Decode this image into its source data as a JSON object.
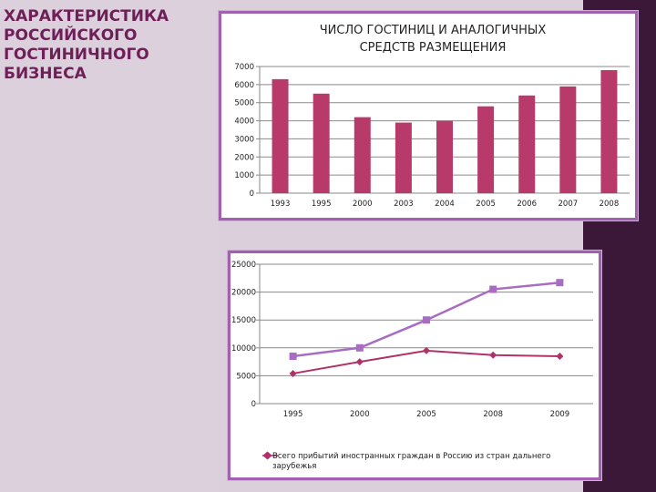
{
  "slide": {
    "title_lines": [
      "ХАРАКТЕРИСТИКА",
      "РОССИЙСКОГО",
      "ГОСТИНИЧНОГО",
      "БИЗНЕСА"
    ]
  },
  "colors": {
    "bar": "#b83a6b",
    "series_dark": "#b03268",
    "series_light": "#a86cc1",
    "title": "#6e1f57",
    "panel_border": "#a35fb0",
    "right_strip": "#3b1838"
  },
  "chart_data": [
    {
      "type": "bar",
      "title_lines": [
        "ЧИСЛО ГОСТИНИЦ И АНАЛОГИЧНЫХ",
        "СРЕДСТВ РАЗМЕЩЕНИЯ"
      ],
      "categories": [
        "1993",
        "1995",
        "2000",
        "2003",
        "2004",
        "2005",
        "2006",
        "2007",
        "2008"
      ],
      "values": [
        6300,
        5500,
        4200,
        3900,
        4000,
        4800,
        5400,
        5900,
        6800
      ],
      "ylim": [
        0,
        7000
      ],
      "yticks": [
        "0",
        "1000",
        "2000",
        "3000",
        "4000",
        "5000",
        "6000",
        "7000"
      ],
      "grid": true,
      "legend": "none"
    },
    {
      "type": "line",
      "categories": [
        "1995",
        "2000",
        "2005",
        "2008",
        "2009"
      ],
      "series": [
        {
          "name": "Всего прибытий иностранных граждан в Россию из стран дальнего зарубежья",
          "values": [
            5400,
            7500,
            9500,
            8700,
            8500
          ],
          "marker": "diamond"
        },
        {
          "values": [
            8500,
            10000,
            15000,
            20500,
            21700
          ],
          "marker": "square"
        }
      ],
      "ylim": [
        0,
        25000
      ],
      "yticks": [
        "0",
        "5000",
        "10000",
        "15000",
        "20000",
        "25000"
      ],
      "legend_lines": [
        "Всего прибытий иностранных граждан в Россию из стран дальнего",
        "зарубежья"
      ],
      "grid": true,
      "legend": "bottom"
    }
  ]
}
